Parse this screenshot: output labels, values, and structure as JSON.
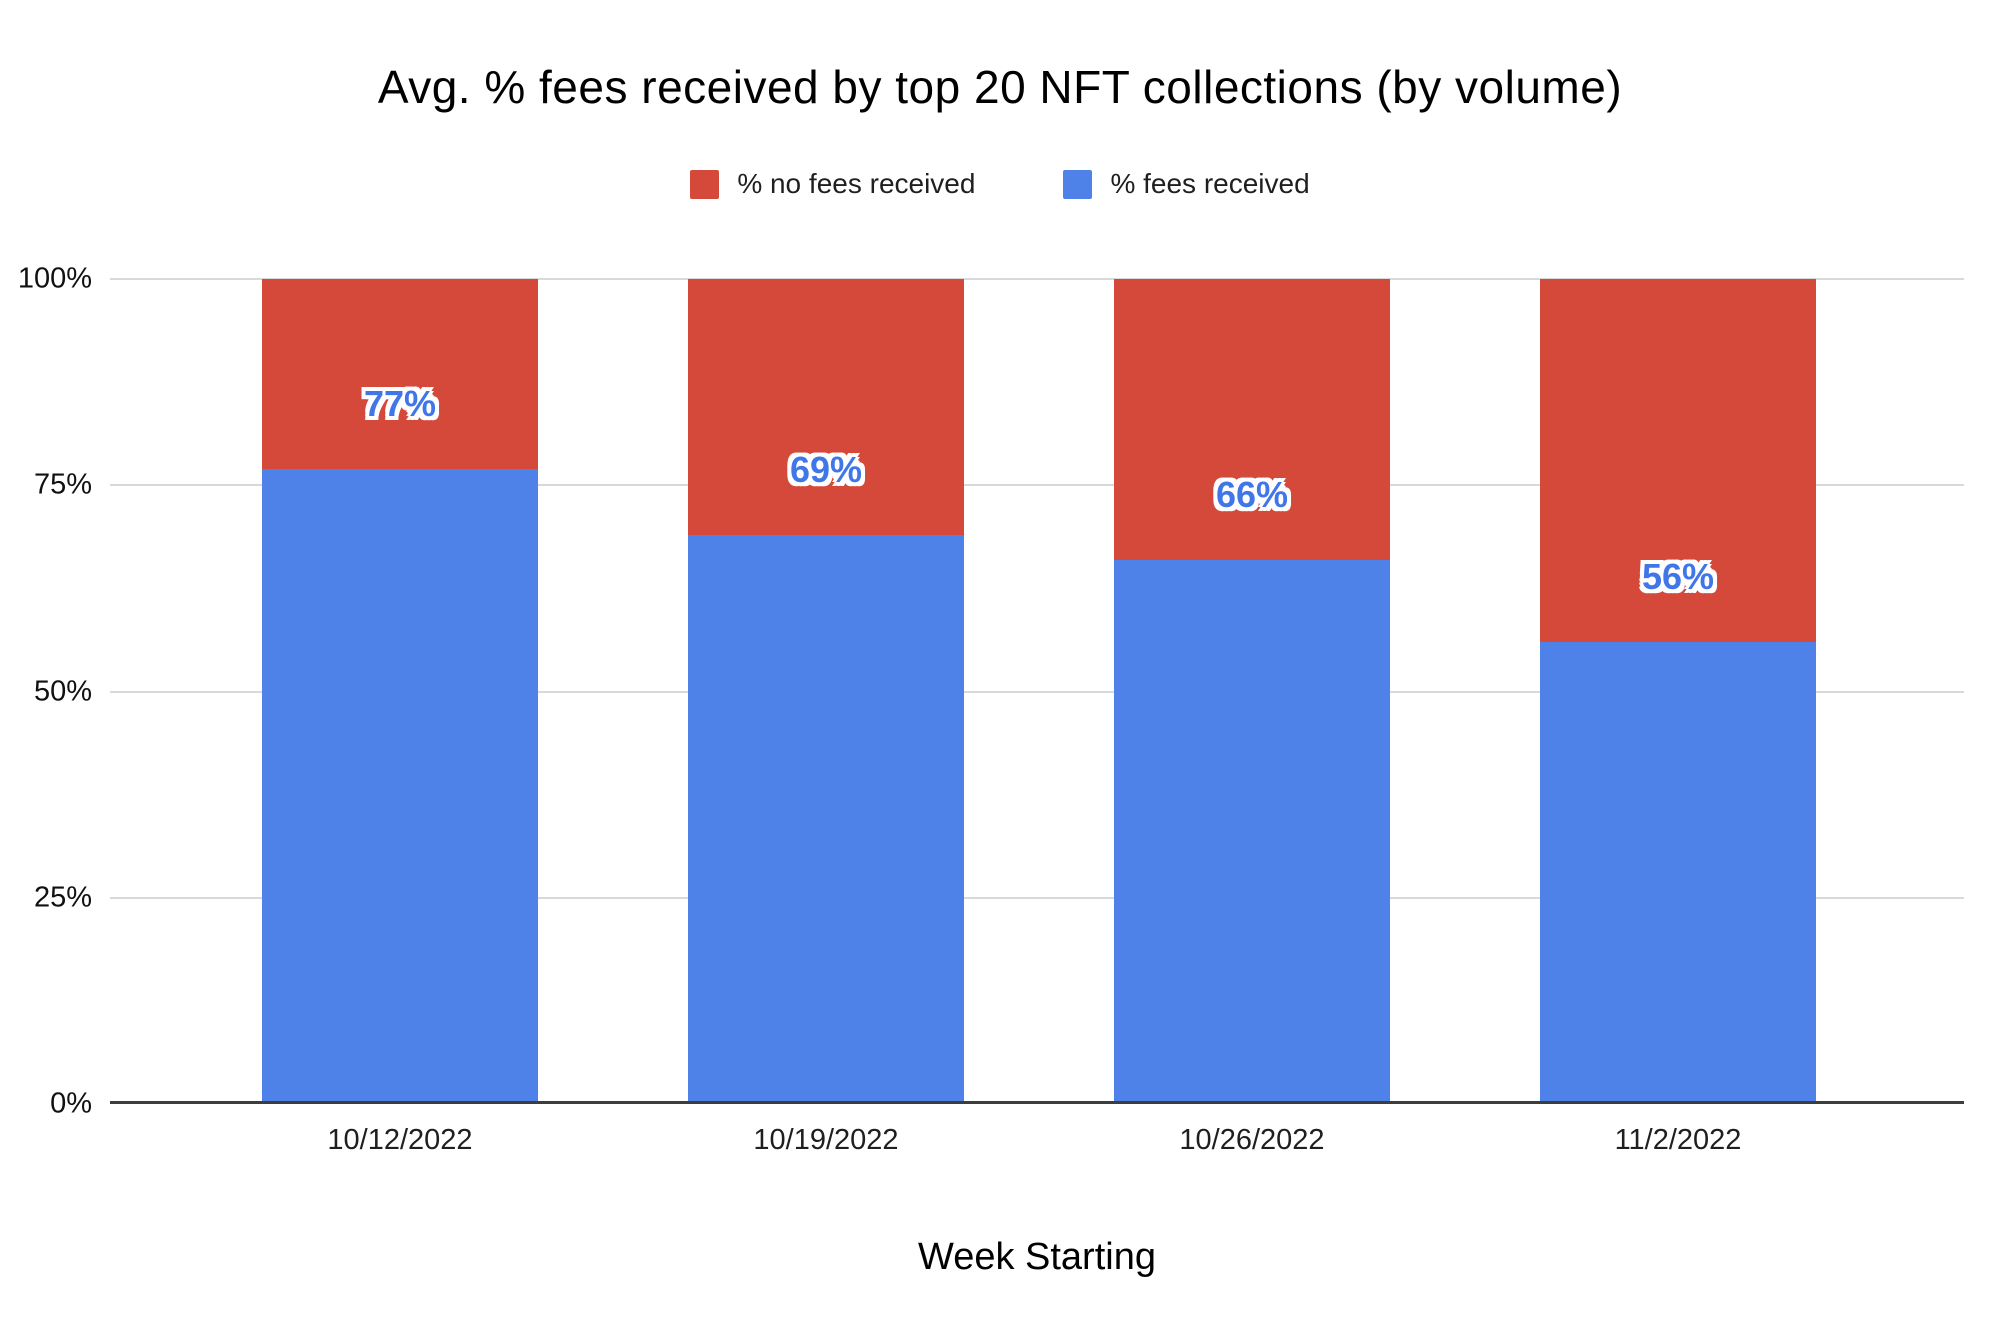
{
  "title": "Avg. % fees received by top 20 NFT collections (by volume)",
  "legend": {
    "items": [
      {
        "label": "% no fees received",
        "color": "#d5493b"
      },
      {
        "label": "% fees received",
        "color": "#4f82e9"
      }
    ]
  },
  "x_axis": {
    "title": "Week Starting",
    "tick_labels": [
      "10/12/2022",
      "10/19/2022",
      "10/26/2022",
      "11/2/2022"
    ]
  },
  "y_axis": {
    "tick_labels": [
      "0%",
      "25%",
      "50%",
      "75%",
      "100%"
    ],
    "tick_values": [
      0,
      25,
      50,
      75,
      100
    ]
  },
  "colors": {
    "fees_received": "#4f82e9",
    "no_fees_received": "#d5493b",
    "gridline": "#d9d9d9",
    "axis_line": "#3d3d3d",
    "bar_label_text": "#4076e8"
  },
  "chart_data": {
    "type": "bar",
    "stacked": true,
    "title": "Avg. % fees received by top 20 NFT collections (by volume)",
    "categories": [
      "10/12/2022",
      "10/19/2022",
      "10/26/2022",
      "11/2/2022"
    ],
    "series": [
      {
        "name": "% fees received",
        "color": "#4f82e9",
        "values": [
          77,
          69,
          66,
          56
        ]
      },
      {
        "name": "% no fees received",
        "color": "#d5493b",
        "values": [
          23,
          31,
          34,
          44
        ]
      }
    ],
    "bar_labels": [
      "77%",
      "69%",
      "66%",
      "56%"
    ],
    "xlabel": "Week Starting",
    "ylabel": "",
    "ylim": [
      0,
      100
    ],
    "yticks": [
      0,
      25,
      50,
      75,
      100
    ],
    "grid": true,
    "legend_position": "top"
  }
}
